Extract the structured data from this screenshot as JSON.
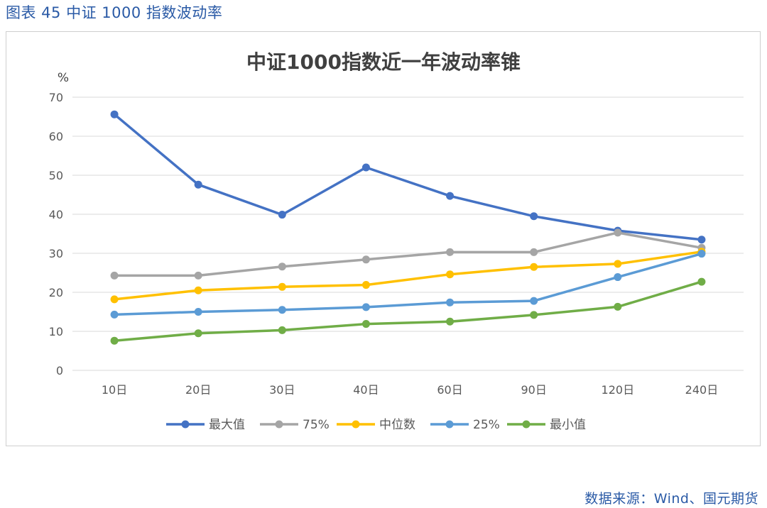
{
  "figure_caption": "图表 45  中证 1000 指数波动率",
  "source_note": "数据来源：Wind、国元期货",
  "chart_data": {
    "type": "line",
    "title": "中证1000指数近一年波动率锥",
    "ylabel": "%",
    "xlabel": "",
    "categories": [
      "10日",
      "20日",
      "30日",
      "40日",
      "60日",
      "90日",
      "120日",
      "240日"
    ],
    "ylim": [
      0,
      70
    ],
    "yticks": [
      0,
      10,
      20,
      30,
      40,
      50,
      60,
      70
    ],
    "grid": true,
    "legend_position": "bottom",
    "series": [
      {
        "name": "最大值",
        "color": "#4472c4",
        "values": [
          65.6,
          47.6,
          39.9,
          52.0,
          44.7,
          39.5,
          35.8,
          33.5
        ]
      },
      {
        "name": "75%",
        "color": "#a5a5a5",
        "values": [
          24.3,
          24.3,
          26.6,
          28.4,
          30.3,
          30.3,
          35.3,
          31.4
        ]
      },
      {
        "name": "中位数",
        "color": "#ffc000",
        "values": [
          18.2,
          20.5,
          21.4,
          21.9,
          24.6,
          26.5,
          27.3,
          30.4
        ]
      },
      {
        "name": "25%",
        "color": "#5b9bd5",
        "values": [
          14.3,
          15.0,
          15.5,
          16.2,
          17.4,
          17.8,
          23.9,
          29.9
        ]
      },
      {
        "name": "最小值",
        "color": "#70ad47",
        "values": [
          7.6,
          9.5,
          10.3,
          11.9,
          12.5,
          14.2,
          16.3,
          22.7
        ]
      }
    ]
  }
}
